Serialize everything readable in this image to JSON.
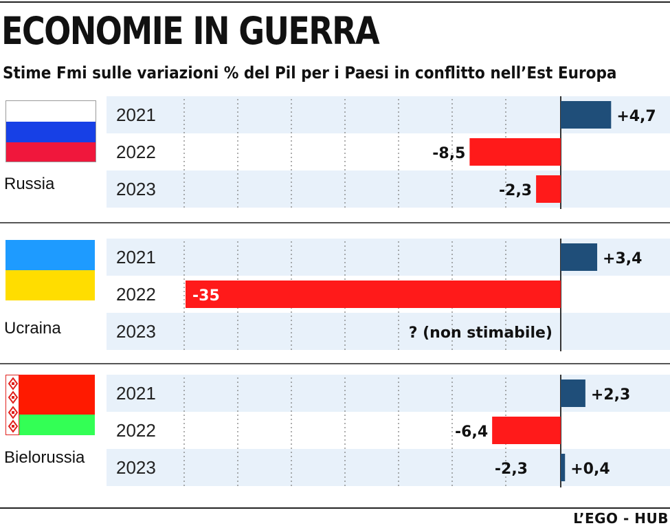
{
  "header": {
    "title": "ECONOMIE IN GUERRA",
    "subtitle": "Stime Fmi sulle variazioni % del Pil per i Paesi in conflitto nell’Est Europa"
  },
  "credit": "L’EGO - HUB",
  "colors": {
    "positive": "#1f4e79",
    "negative": "#ff1a1a",
    "band": "#e8f1fa",
    "axis": "#333333",
    "russia_flag": [
      "#ffffff",
      "#1740e6",
      "#f0173c"
    ],
    "ukraine_flag": [
      "#1e9bff",
      "#ffdd00"
    ],
    "belarus_flag": [
      "#ff1a00",
      "#33ff55",
      "#e0201c"
    ]
  },
  "chart_data": {
    "type": "bar",
    "orientation": "horizontal",
    "title": "ECONOMIE IN GUERRA",
    "subtitle": "Stime Fmi sulle variazioni % del Pil per i Paesi in conflitto nell’Est Europa",
    "xlim": [
      -35,
      5
    ],
    "grid": true,
    "groups": [
      {
        "name": "Russia",
        "flag_icon": "russia-flag-icon",
        "rows": [
          {
            "year": "2021",
            "value": 4.7,
            "label": "+4,7"
          },
          {
            "year": "2022",
            "value": -8.5,
            "label": "-8,5"
          },
          {
            "year": "2023",
            "value": -2.3,
            "label": "-2,3"
          }
        ]
      },
      {
        "name": "Ucraina",
        "flag_icon": "ukraine-flag-icon",
        "rows": [
          {
            "year": "2021",
            "value": 3.4,
            "label": "+3,4"
          },
          {
            "year": "2022",
            "value": -35,
            "label": "-35"
          },
          {
            "year": "2023",
            "value": null,
            "label": "? (non stimabile)"
          }
        ]
      },
      {
        "name": "Bielorussia",
        "flag_icon": "belarus-flag-icon",
        "rows": [
          {
            "year": "2021",
            "value": 2.3,
            "label": "+2,3"
          },
          {
            "year": "2022",
            "value": -6.4,
            "label": "-6,4"
          },
          {
            "year": "2023",
            "value": 0.4,
            "label": "+0,4",
            "extra_label": "-2,3"
          }
        ]
      }
    ]
  }
}
